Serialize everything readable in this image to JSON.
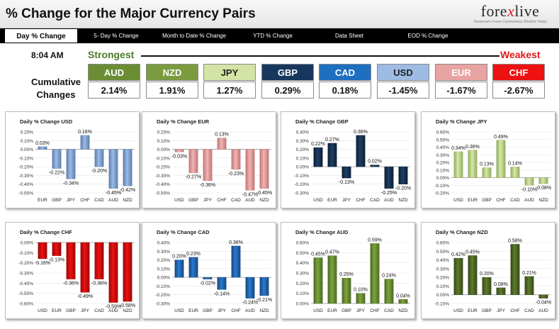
{
  "header": {
    "title": "% Change for the Major Currency Pairs",
    "logo": "forexlive",
    "logo_tagline": "Tomorrow's Forex Commentary Wisdom Today"
  },
  "nav": {
    "tabs": [
      {
        "label": "Day % Change",
        "active": true
      },
      {
        "label": "5- Day % Change",
        "active": false
      },
      {
        "label": "Month to Date % Change",
        "active": false
      },
      {
        "label": "YTD % Change",
        "active": false
      },
      {
        "label": "Data Sheet",
        "active": false
      },
      {
        "label": "EOD % Change",
        "active": false
      }
    ]
  },
  "summary": {
    "time": "8:04 AM",
    "strongest_label": "Strongest",
    "weakest_label": "Weakest",
    "cumulative_label": "Cumulative Changes",
    "currencies": [
      {
        "code": "AUD",
        "value": "2.14%",
        "color": "#6b8e35",
        "text_color": "#ffffff"
      },
      {
        "code": "NZD",
        "value": "1.91%",
        "color": "#7a9b3f",
        "text_color": "#ffffff"
      },
      {
        "code": "JPY",
        "value": "1.27%",
        "color": "#d4e4a6",
        "text_color": "#222222"
      },
      {
        "code": "GBP",
        "value": "0.29%",
        "color": "#17375e",
        "text_color": "#ffffff"
      },
      {
        "code": "CAD",
        "value": "0.18%",
        "color": "#1f6fc1",
        "text_color": "#ffffff"
      },
      {
        "code": "USD",
        "value": "-1.45%",
        "color": "#9dbbe3",
        "text_color": "#222222"
      },
      {
        "code": "EUR",
        "value": "-1.67%",
        "color": "#e8a3a3",
        "text_color": "#ffffff"
      },
      {
        "code": "CHF",
        "value": "-2.67%",
        "color": "#ee1111",
        "text_color": "#ffffff"
      }
    ]
  },
  "chart_data": [
    {
      "type": "bar",
      "title": "Daily % Change USD",
      "categories": [
        "EUR",
        "GBP",
        "JPY",
        "CHF",
        "CAD",
        "AUD",
        "NZD"
      ],
      "values": [
        0.03,
        -0.22,
        -0.34,
        0.16,
        -0.2,
        -0.45,
        -0.42
      ],
      "labels": [
        "0.03%",
        "-0.22%",
        "-0.34%",
        "0.16%",
        "-0.20%",
        "-0.45%",
        "-0.42%"
      ],
      "yticks": [
        "0.20%",
        "0.10%",
        "0.00%",
        "-0.10%",
        "-0.20%",
        "-0.30%",
        "-0.40%",
        "-0.50%"
      ],
      "ylim": [
        -0.5,
        0.2
      ],
      "color": "#9dbbe3",
      "dark": "#5b7fb0"
    },
    {
      "type": "bar",
      "title": "Daily % Change EUR",
      "categories": [
        "USD",
        "GBP",
        "JPY",
        "CHF",
        "CAD",
        "AUD",
        "NZD"
      ],
      "values": [
        -0.03,
        -0.27,
        -0.36,
        0.13,
        -0.23,
        -0.47,
        -0.45
      ],
      "labels": [
        "-0.03%",
        "-0.27%",
        "-0.36%",
        "0.13%",
        "-0.23%",
        "-0.47%",
        "-0.45%"
      ],
      "yticks": [
        "0.20%",
        "0.10%",
        "0.00%",
        "-0.10%",
        "-0.20%",
        "-0.30%",
        "-0.40%",
        "-0.50%"
      ],
      "ylim": [
        -0.5,
        0.2
      ],
      "color": "#f0b4b4",
      "dark": "#c27575"
    },
    {
      "type": "bar",
      "title": "Daily % Change GBP",
      "categories": [
        "USD",
        "EUR",
        "JPY",
        "CHF",
        "CAD",
        "AUD",
        "NZD"
      ],
      "values": [
        0.22,
        0.27,
        -0.13,
        0.36,
        0.02,
        -0.25,
        -0.2
      ],
      "labels": [
        "0.22%",
        "0.27%",
        "-0.13%",
        "0.36%",
        "0.02%",
        "-0.25%",
        "-0.20%"
      ],
      "yticks": [
        "0.40%",
        "0.30%",
        "0.20%",
        "0.10%",
        "0.00%",
        "-0.10%",
        "-0.20%",
        "-0.30%"
      ],
      "ylim": [
        -0.3,
        0.4
      ],
      "color": "#1f3e66",
      "dark": "#0d1f36"
    },
    {
      "type": "bar",
      "title": "Daily % Change JPY",
      "categories": [
        "USD",
        "EUR",
        "GBP",
        "CHF",
        "CAD",
        "AUD",
        "NZD"
      ],
      "values": [
        0.34,
        0.36,
        0.13,
        0.49,
        0.14,
        -0.1,
        -0.08
      ],
      "labels": [
        "0.34%",
        "0.36%",
        "0.13%",
        "0.49%",
        "0.14%",
        "-0.10%",
        "-0.08%"
      ],
      "yticks": [
        "0.60%",
        "0.50%",
        "0.40%",
        "0.30%",
        "0.20%",
        "0.10%",
        "0.00%",
        "-0.10%",
        "-0.20%"
      ],
      "ylim": [
        -0.2,
        0.6
      ],
      "color": "#d6e8a8",
      "dark": "#93ad5c"
    },
    {
      "type": "bar",
      "title": "Daily % Change CHF",
      "categories": [
        "USD",
        "EUR",
        "GBP",
        "JPY",
        "CAD",
        "AUD",
        "NZD"
      ],
      "values": [
        -0.16,
        -0.13,
        -0.36,
        -0.49,
        -0.36,
        -0.59,
        -0.58
      ],
      "labels": [
        "-0.16%",
        "-0.13%",
        "-0.36%",
        "-0.49%",
        "-0.36%",
        "-0.59%",
        "-0.58%"
      ],
      "yticks": [
        "0.00%",
        "-0.10%",
        "-0.20%",
        "-0.30%",
        "-0.40%",
        "-0.50%",
        "-0.60%"
      ],
      "ylim": [
        -0.6,
        0.0
      ],
      "color": "#ee1111",
      "dark": "#9c0808"
    },
    {
      "type": "bar",
      "title": "Daily % Change CAD",
      "categories": [
        "USD",
        "EUR",
        "GBP",
        "JPY",
        "CHF",
        "AUD",
        "NZD"
      ],
      "values": [
        0.2,
        0.23,
        -0.02,
        -0.14,
        0.36,
        -0.24,
        -0.21
      ],
      "labels": [
        "0.20%",
        "0.23%",
        "-0.02%",
        "-0.14%",
        "0.36%",
        "-0.24%",
        "-0.21%"
      ],
      "yticks": [
        "0.40%",
        "0.30%",
        "0.20%",
        "0.10%",
        "0.00%",
        "-0.10%",
        "-0.20%",
        "-0.30%"
      ],
      "ylim": [
        -0.3,
        0.4
      ],
      "color": "#2a7ad0",
      "dark": "#15487e"
    },
    {
      "type": "bar",
      "title": "Daily % Change AUD",
      "categories": [
        "USD",
        "EUR",
        "GBP",
        "JPY",
        "CHF",
        "CAD",
        "NZD"
      ],
      "values": [
        0.45,
        0.47,
        0.25,
        0.1,
        0.59,
        0.24,
        0.04
      ],
      "labels": [
        "0.45%",
        "0.47%",
        "0.25%",
        "0.10%",
        "0.59%",
        "0.24%",
        "0.04%"
      ],
      "yticks": [
        "0.60%",
        "0.50%",
        "0.40%",
        "0.30%",
        "0.20%",
        "0.10%",
        "0.00%"
      ],
      "ylim": [
        0.0,
        0.6
      ],
      "color": "#7ea43e",
      "dark": "#4c6a22"
    },
    {
      "type": "bar",
      "title": "Daily % Change NZD",
      "categories": [
        "USD",
        "EUR",
        "GBP",
        "JPY",
        "CHF",
        "CAD",
        "AUD"
      ],
      "values": [
        0.42,
        0.45,
        0.2,
        0.08,
        0.58,
        0.21,
        -0.04
      ],
      "labels": [
        "0.42%",
        "0.45%",
        "0.20%",
        "0.08%",
        "0.58%",
        "0.21%",
        "-0.04%"
      ],
      "yticks": [
        "0.60%",
        "0.50%",
        "0.40%",
        "0.30%",
        "0.20%",
        "0.10%",
        "0.00%",
        "-0.10%"
      ],
      "ylim": [
        -0.1,
        0.6
      ],
      "color": "#5d7b2c",
      "dark": "#36491a"
    }
  ]
}
